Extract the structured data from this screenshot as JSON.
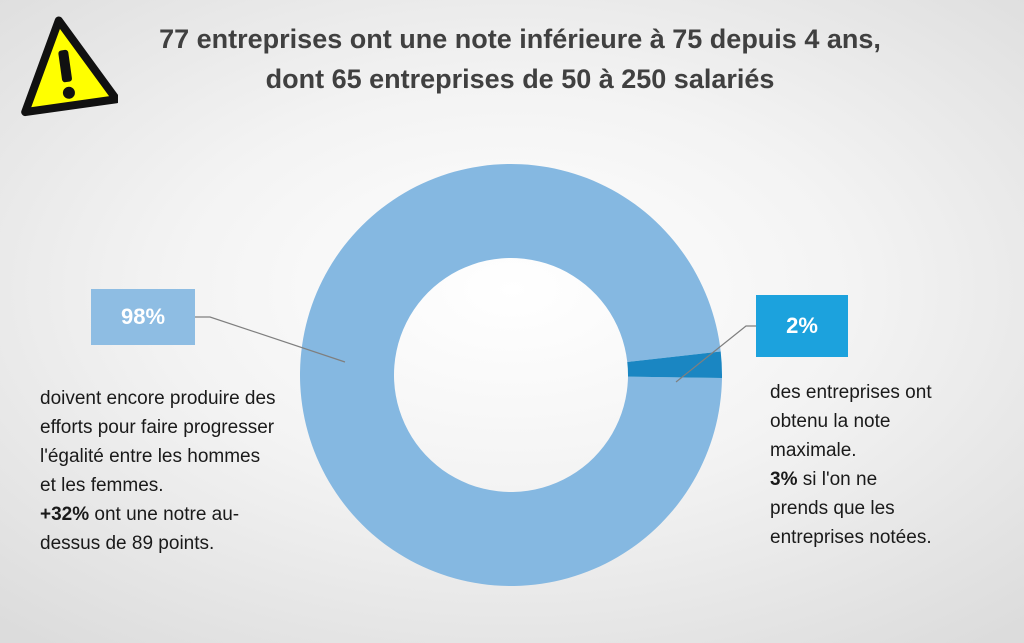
{
  "title": {
    "line1": "77 entreprises ont une note inférieure à 75 depuis 4 ans,",
    "line2": "dont 65 entreprises de 50 à 250 salariés"
  },
  "warning_icon": "warning-triangle-icon",
  "chart_data": {
    "type": "pie",
    "style": "donut",
    "categories": [
      "98%",
      "2%"
    ],
    "values": [
      98,
      2
    ],
    "colors": [
      "#85b8e1",
      "#1a86c2"
    ],
    "data_labels": [
      "98%",
      "2%"
    ],
    "label_box_colors": [
      "#8ebde3",
      "#1ca2dd"
    ],
    "legend": "none"
  },
  "annotations": {
    "left": {
      "label": "98%",
      "text": "doivent encore produire des efforts pour faire progresser l'égalité entre les hommes et les femmes.",
      "highlight": "+32%",
      "highlight_text": " ont une notre au-dessus de 89 points."
    },
    "right": {
      "label": "2%",
      "text": "des entreprises ont obtenu la note maximale.",
      "highlight": "3%",
      "highlight_text": " si l'on ne prends que les entreprises notées."
    }
  }
}
